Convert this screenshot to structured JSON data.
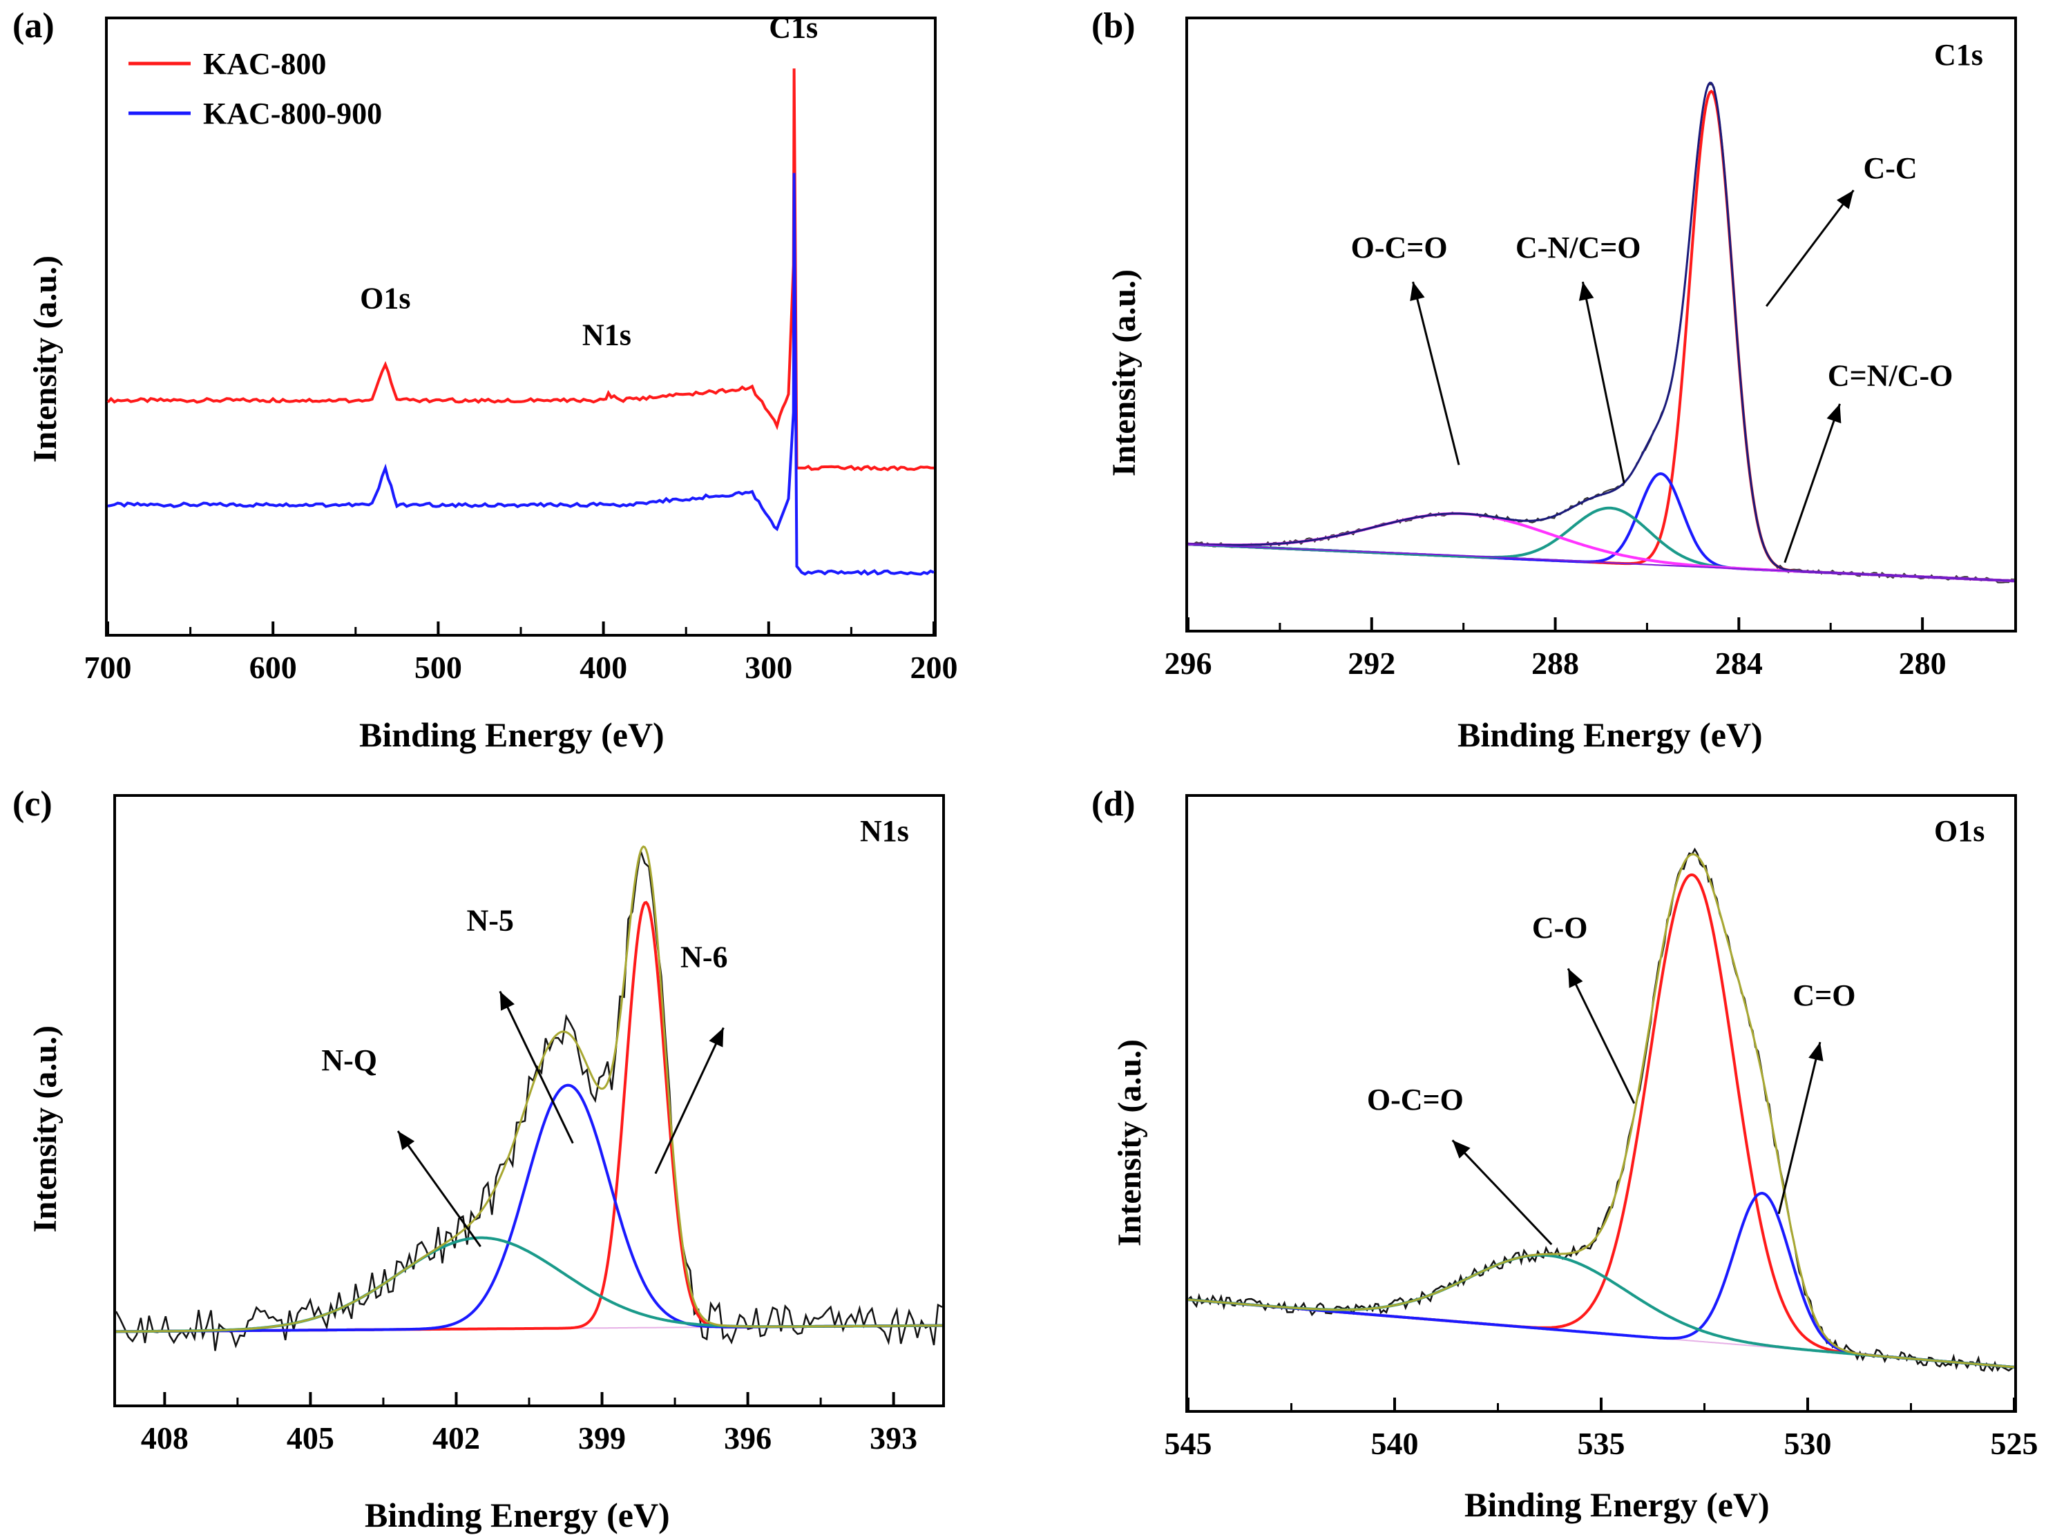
{
  "colors": {
    "red": "#ff1a1a",
    "blue": "#1a1aff",
    "teal": "#1a9a8a",
    "magenta": "#ff33ff",
    "purple": "#7a1ad8",
    "olive": "#a8a832",
    "black": "#111111",
    "navy": "#1a1a7a"
  },
  "chart_data": [
    {
      "panel": "(a)",
      "type": "line",
      "xlabel": "Binding Energy (eV)",
      "ylabel": "Intensity (a.u.)",
      "xlim": [
        700,
        200
      ],
      "x_ticks": [
        700,
        600,
        500,
        400,
        300,
        200
      ],
      "y_ticks_labeled": false,
      "legend": {
        "placement": "top-left",
        "entries": [
          "KAC-800",
          "KAC-800-900"
        ]
      },
      "series": [
        {
          "name": "KAC-800",
          "color": "red",
          "x": [
            700,
            600,
            540,
            532,
            525,
            450,
            400,
            397,
            390,
            310,
            300,
            295,
            288,
            285,
            284.6,
            283,
            280,
            200
          ],
          "y": [
            0.38,
            0.38,
            0.38,
            0.44,
            0.38,
            0.38,
            0.38,
            0.39,
            0.38,
            0.4,
            0.36,
            0.34,
            0.39,
            0.6,
            0.92,
            0.27,
            0.27,
            0.27
          ]
        },
        {
          "name": "KAC-800-900",
          "color": "blue",
          "x": [
            700,
            600,
            540,
            532,
            525,
            450,
            400,
            390,
            310,
            300,
            295,
            288,
            285,
            284.6,
            283,
            280,
            200
          ],
          "y": [
            0.21,
            0.21,
            0.21,
            0.27,
            0.21,
            0.21,
            0.21,
            0.21,
            0.23,
            0.19,
            0.17,
            0.22,
            0.36,
            0.75,
            0.11,
            0.1,
            0.1
          ]
        }
      ],
      "peak_labels": [
        {
          "text": "C1s",
          "x": 285,
          "y": 0.97
        },
        {
          "text": "O1s",
          "x": 532,
          "y": 0.53
        },
        {
          "text": "N1s",
          "x": 398,
          "y": 0.47
        }
      ]
    },
    {
      "panel": "(b)",
      "type": "line",
      "region": "C1s",
      "xlabel": "Binding Energy (eV)",
      "ylabel": "Intensity (a.u.)",
      "xlim": [
        296,
        278
      ],
      "x_ticks": [
        296,
        292,
        288,
        284,
        280
      ],
      "y_ticks_labeled": false,
      "baseline": {
        "x": [
          296,
          278
        ],
        "y": [
          0.14,
          0.08
        ]
      },
      "components": [
        {
          "name": "C-C",
          "color": "red",
          "center": 284.6,
          "fwhm": 1.1,
          "height": 0.78
        },
        {
          "name": "C=N/C-O",
          "color": "blue",
          "center": 285.7,
          "fwhm": 1.1,
          "height": 0.15
        },
        {
          "name": "C-N/C=O",
          "color": "teal",
          "center": 286.8,
          "fwhm": 2.0,
          "height": 0.09
        },
        {
          "name": "O-C=O",
          "color": "magenta",
          "center": 290.0,
          "fwhm": 4.5,
          "height": 0.07
        }
      ],
      "envelope_color": "navy",
      "annotations": [
        {
          "text": "C-C",
          "x": 280.7,
          "y": 0.74,
          "arrow_from": [
            283.4,
            0.53
          ],
          "arrow_to": [
            281.5,
            0.72
          ]
        },
        {
          "text": "C=N/C-O",
          "x": 280.7,
          "y": 0.4,
          "arrow_from": [
            283.0,
            0.11
          ],
          "arrow_to": [
            281.8,
            0.37
          ]
        },
        {
          "text": "C-N/C=O",
          "x": 287.5,
          "y": 0.61,
          "arrow_from": [
            286.5,
            0.24
          ],
          "arrow_to": [
            287.4,
            0.57
          ]
        },
        {
          "text": "O-C=O",
          "x": 291.4,
          "y": 0.61,
          "arrow_from": [
            290.1,
            0.27
          ],
          "arrow_to": [
            291.1,
            0.57
          ]
        }
      ]
    },
    {
      "panel": "(c)",
      "type": "line",
      "region": "N1s",
      "xlabel": "Binding Energy (eV)",
      "ylabel": "Intensity (a.u.)",
      "xlim": [
        409,
        392
      ],
      "x_ticks": [
        408,
        405,
        402,
        399,
        396,
        393
      ],
      "y_ticks_labeled": false,
      "baseline": {
        "x": [
          409,
          392
        ],
        "y": [
          0.12,
          0.13
        ]
      },
      "components": [
        {
          "name": "N-6",
          "color": "red",
          "center": 398.1,
          "fwhm": 0.95,
          "height": 0.7
        },
        {
          "name": "N-5",
          "color": "blue",
          "center": 399.7,
          "fwhm": 2.0,
          "height": 0.4
        },
        {
          "name": "N-Q",
          "color": "teal",
          "center": 401.5,
          "fwhm": 4.0,
          "height": 0.15
        }
      ],
      "envelope_color": "olive",
      "raw_color": "black",
      "annotations": [
        {
          "text": "N-6",
          "x": 396.9,
          "y": 0.72,
          "arrow_from": [
            397.9,
            0.38
          ],
          "arrow_to": [
            396.5,
            0.62
          ]
        },
        {
          "text": "N-5",
          "x": 401.3,
          "y": 0.78,
          "arrow_from": [
            399.6,
            0.43
          ],
          "arrow_to": [
            401.1,
            0.68
          ]
        },
        {
          "text": "N-Q",
          "x": 404.2,
          "y": 0.55,
          "arrow_from": [
            401.5,
            0.26
          ],
          "arrow_to": [
            403.2,
            0.45
          ]
        }
      ]
    },
    {
      "panel": "(d)",
      "type": "line",
      "region": "O1s",
      "xlabel": "Binding Energy (eV)",
      "ylabel": "Intensity (a.u.)",
      "xlim": [
        545,
        525
      ],
      "x_ticks": [
        545,
        540,
        535,
        530,
        525
      ],
      "y_ticks_labeled": false,
      "baseline": {
        "x": [
          545,
          525
        ],
        "y": [
          0.18,
          0.07
        ]
      },
      "components": [
        {
          "name": "C-O",
          "color": "red",
          "center": 532.8,
          "fwhm": 2.4,
          "height": 0.76
        },
        {
          "name": "C=O",
          "color": "blue",
          "center": 531.1,
          "fwhm": 1.6,
          "height": 0.25
        },
        {
          "name": "O-C=O",
          "color": "teal",
          "center": 536.3,
          "fwhm": 4.5,
          "height": 0.12
        }
      ],
      "envelope_color": "olive",
      "raw_color": "black",
      "annotations": [
        {
          "text": "C-O",
          "x": 536.0,
          "y": 0.77,
          "arrow_from": [
            534.2,
            0.5
          ],
          "arrow_to": [
            535.8,
            0.72
          ]
        },
        {
          "text": "C=O",
          "x": 529.6,
          "y": 0.66,
          "arrow_from": [
            530.7,
            0.32
          ],
          "arrow_to": [
            529.7,
            0.6
          ]
        },
        {
          "text": "O-C=O",
          "x": 539.5,
          "y": 0.49,
          "arrow_from": [
            536.2,
            0.27
          ],
          "arrow_to": [
            538.6,
            0.44
          ]
        }
      ]
    }
  ]
}
